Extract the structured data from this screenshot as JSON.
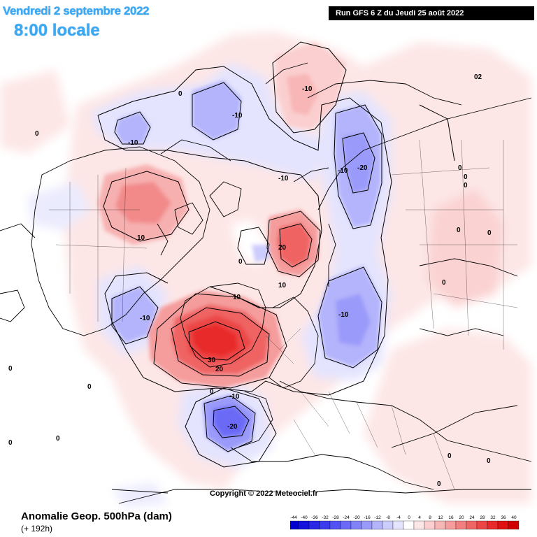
{
  "header": {
    "date": "Vendredi 2 septembre 2022",
    "time": "8:00 locale",
    "run": "Run GFS 6 Z du Jeudi 25 août 2022"
  },
  "footer": {
    "title": "Anomalie Geop. 500hPa (dam)",
    "subtitle": "(+ 192h)",
    "copyright": "Copyright © 2022 Meteociel.fr"
  },
  "legend": {
    "values": [
      "-44",
      "-40",
      "-36",
      "-32",
      "-28",
      "-24",
      "-20",
      "-16",
      "-12",
      "-8",
      "-4",
      "0",
      "4",
      "8",
      "12",
      "16",
      "20",
      "24",
      "28",
      "32",
      "36",
      "40"
    ],
    "colors": [
      "#0000d0",
      "#1212dc",
      "#2828e6",
      "#3c3cee",
      "#5252f4",
      "#6a6af7",
      "#8282f8",
      "#9a9afa",
      "#b4b4fc",
      "#ccccfd",
      "#e4e4fe",
      "#ffffff",
      "#fde6e6",
      "#fbcfcf",
      "#f8b6b6",
      "#f59c9c",
      "#f28080",
      "#ef6464",
      "#ec4646",
      "#e82a2a",
      "#e01010",
      "#d00000"
    ]
  },
  "contour_labels": {
    "zero": "0",
    "plus10": "10",
    "plus20": "20",
    "plus30": "30",
    "minus10": "-10",
    "minus20": "-20",
    "zero_alt": "02"
  }
}
